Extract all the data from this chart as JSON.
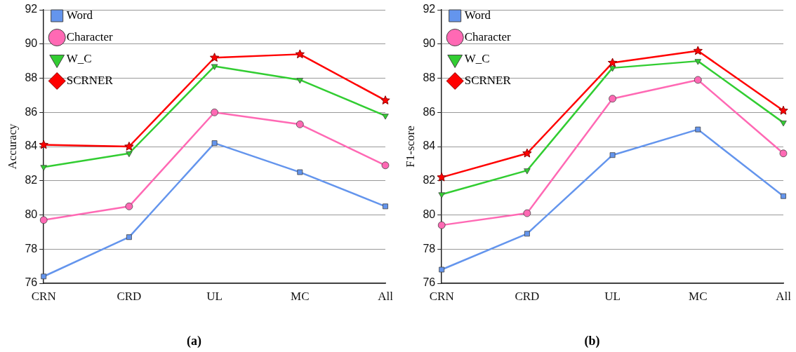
{
  "chart_data": [
    {
      "type": "line",
      "xlabel": "(a)",
      "ylabel": "Accuracy",
      "categories": [
        "CRN",
        "CRD",
        "UL",
        "MC",
        "All"
      ],
      "ylim": [
        76,
        92
      ],
      "yticks": [
        76,
        78,
        80,
        82,
        84,
        86,
        88,
        90,
        92
      ],
      "grid": "y",
      "legend": "top left",
      "series": [
        {
          "name": "Word",
          "color": "#6495ed",
          "marker": "square",
          "values": [
            76.4,
            78.7,
            84.2,
            82.5,
            80.5
          ]
        },
        {
          "name": "Character",
          "color": "#ff69b4",
          "marker": "circle",
          "values": [
            79.7,
            80.5,
            86.0,
            85.3,
            82.9
          ]
        },
        {
          "name": "W_C",
          "color": "#32cd32",
          "marker": "triangle",
          "values": [
            82.8,
            83.6,
            88.7,
            87.9,
            85.8
          ]
        },
        {
          "name": "SCRNER",
          "color": "#ff0000",
          "marker": "star",
          "values": [
            84.1,
            84.0,
            89.2,
            89.4,
            86.7
          ]
        }
      ]
    },
    {
      "type": "line",
      "xlabel": "(b)",
      "ylabel": "F1-score",
      "categories": [
        "CRN",
        "CRD",
        "UL",
        "MC",
        "All"
      ],
      "ylim": [
        76,
        92
      ],
      "yticks": [
        76,
        78,
        80,
        82,
        84,
        86,
        88,
        90,
        92
      ],
      "grid": "y",
      "legend": "top left",
      "series": [
        {
          "name": "Word",
          "color": "#6495ed",
          "marker": "square",
          "values": [
            76.8,
            78.9,
            83.5,
            85.0,
            81.1
          ]
        },
        {
          "name": "Character",
          "color": "#ff69b4",
          "marker": "circle",
          "values": [
            79.4,
            80.1,
            86.8,
            87.9,
            83.6
          ]
        },
        {
          "name": "W_C",
          "color": "#32cd32",
          "marker": "triangle",
          "values": [
            81.2,
            82.6,
            88.6,
            89.0,
            85.4
          ]
        },
        {
          "name": "SCRNER",
          "color": "#ff0000",
          "marker": "star",
          "values": [
            82.2,
            83.6,
            88.9,
            89.6,
            86.1
          ]
        }
      ]
    }
  ]
}
